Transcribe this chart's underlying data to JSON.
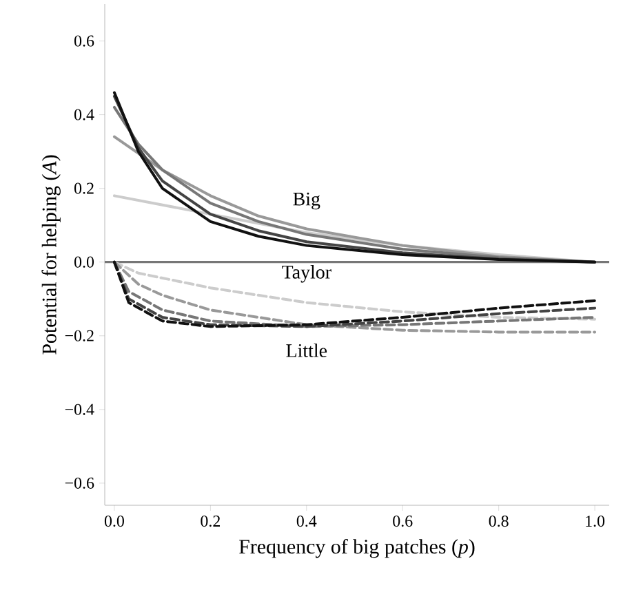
{
  "chart_data": {
    "type": "line",
    "xlabel": "Frequency of big patches (*p*)",
    "ylabel": "Potential for helping (*A*)",
    "xlim": [
      -0.02,
      1.03
    ],
    "ylim": [
      -0.66,
      0.7
    ],
    "xticks": [
      {
        "value": 0,
        "label": "0.0"
      },
      {
        "value": 0.2,
        "label": "0.2"
      },
      {
        "value": 0.4,
        "label": "0.4"
      },
      {
        "value": 0.6,
        "label": "0.6"
      },
      {
        "value": 0.8,
        "label": "0.8"
      },
      {
        "value": 1,
        "label": "1.0"
      }
    ],
    "yticks": [
      {
        "value": -0.6,
        "label": "−0.6"
      },
      {
        "value": -0.4,
        "label": "−0.4"
      },
      {
        "value": -0.2,
        "label": "−0.2"
      },
      {
        "value": 0,
        "label": "0.0"
      },
      {
        "value": 0.2,
        "label": "0.2"
      },
      {
        "value": 0.4,
        "label": "0.4"
      },
      {
        "value": 0.6,
        "label": "0.6"
      }
    ],
    "grid": false,
    "marker": "none",
    "series": [
      {
        "color": "#cccccc",
        "line_style": "solid",
        "x": [
          0,
          0.1,
          0.2,
          0.3,
          0.4,
          0.6,
          0.8,
          1
        ],
        "values": [
          0.18,
          0.155,
          0.13,
          0.105,
          0.08,
          0.045,
          0.02,
          0
        ]
      },
      {
        "color": "#999999",
        "line_style": "solid",
        "x": [
          0,
          0.1,
          0.2,
          0.3,
          0.4,
          0.6,
          0.8,
          1
        ],
        "values": [
          0.34,
          0.25,
          0.18,
          0.125,
          0.09,
          0.045,
          0.015,
          0
        ]
      },
      {
        "color": "#777777",
        "line_style": "solid",
        "x": [
          0,
          0.05,
          0.1,
          0.2,
          0.3,
          0.4,
          0.6,
          0.8,
          1
        ],
        "values": [
          0.42,
          0.32,
          0.25,
          0.16,
          0.11,
          0.075,
          0.035,
          0.012,
          0
        ]
      },
      {
        "color": "#444444",
        "line_style": "solid",
        "x": [
          0,
          0.05,
          0.1,
          0.2,
          0.3,
          0.4,
          0.6,
          0.8,
          1
        ],
        "values": [
          0.45,
          0.31,
          0.22,
          0.13,
          0.085,
          0.055,
          0.025,
          0.008,
          0
        ]
      },
      {
        "color": "#111111",
        "line_style": "solid",
        "x": [
          0,
          0.05,
          0.1,
          0.2,
          0.3,
          0.4,
          0.6,
          0.8,
          1
        ],
        "values": [
          0.46,
          0.3,
          0.2,
          0.11,
          0.07,
          0.045,
          0.02,
          0.007,
          0
        ]
      },
      {
        "color": "#cccccc",
        "line_style": "dashed",
        "x": [
          0,
          0.05,
          0.2,
          0.4,
          0.6,
          0.8,
          1
        ],
        "values": [
          0,
          -0.03,
          -0.07,
          -0.11,
          -0.135,
          -0.15,
          -0.155
        ]
      },
      {
        "color": "#999999",
        "line_style": "dashed",
        "x": [
          0,
          0.05,
          0.1,
          0.2,
          0.4,
          0.6,
          0.8,
          1
        ],
        "values": [
          0,
          -0.06,
          -0.09,
          -0.13,
          -0.17,
          -0.185,
          -0.19,
          -0.19
        ]
      },
      {
        "color": "#777777",
        "line_style": "dashed",
        "x": [
          0,
          0.03,
          0.1,
          0.2,
          0.4,
          0.6,
          0.8,
          1
        ],
        "values": [
          0,
          -0.08,
          -0.13,
          -0.16,
          -0.175,
          -0.17,
          -0.16,
          -0.15
        ]
      },
      {
        "color": "#444444",
        "line_style": "dashed",
        "x": [
          0,
          0.03,
          0.1,
          0.2,
          0.4,
          0.6,
          0.8,
          1
        ],
        "values": [
          0,
          -0.1,
          -0.15,
          -0.17,
          -0.175,
          -0.16,
          -0.14,
          -0.125
        ]
      },
      {
        "color": "#111111",
        "line_style": "dashed",
        "x": [
          0,
          0.03,
          0.1,
          0.2,
          0.4,
          0.6,
          0.8,
          1
        ],
        "values": [
          0,
          -0.11,
          -0.16,
          -0.175,
          -0.17,
          -0.15,
          -0.125,
          -0.105
        ]
      }
    ],
    "ref_lines": [
      {
        "axis": "y",
        "value": 0,
        "label": "Taylor",
        "color": "#777777"
      }
    ],
    "annotations": [
      "Big",
      "Little"
    ]
  }
}
